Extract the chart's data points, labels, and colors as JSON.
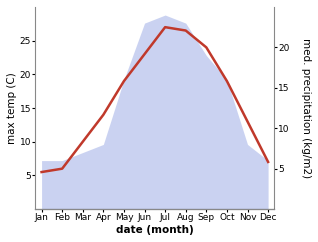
{
  "months": [
    "Jan",
    "Feb",
    "Mar",
    "Apr",
    "May",
    "Jun",
    "Jul",
    "Aug",
    "Sep",
    "Oct",
    "Nov",
    "Dec"
  ],
  "temperature": [
    5.5,
    6.0,
    10.0,
    14.0,
    19.0,
    23.0,
    27.0,
    26.5,
    24.0,
    19.0,
    13.0,
    7.0
  ],
  "precipitation": [
    6,
    6,
    7,
    8,
    16,
    23,
    24,
    23,
    19,
    16,
    8,
    6
  ],
  "temp_color": "#c0392b",
  "precip_color": "#c5cef0",
  "ylabel_left": "max temp (C)",
  "ylabel_right": "med. precipitation (kg/m2)",
  "xlabel": "date (month)",
  "ylim_left": [
    0,
    30
  ],
  "ylim_right": [
    0,
    25
  ],
  "yticks_left": [
    5,
    10,
    15,
    20,
    25
  ],
  "yticks_right": [
    5,
    10,
    15,
    20
  ],
  "background_color": "#ffffff",
  "temp_linewidth": 1.8,
  "xlabel_fontsize": 7.5,
  "ylabel_fontsize": 7.5,
  "tick_fontsize": 6.5
}
